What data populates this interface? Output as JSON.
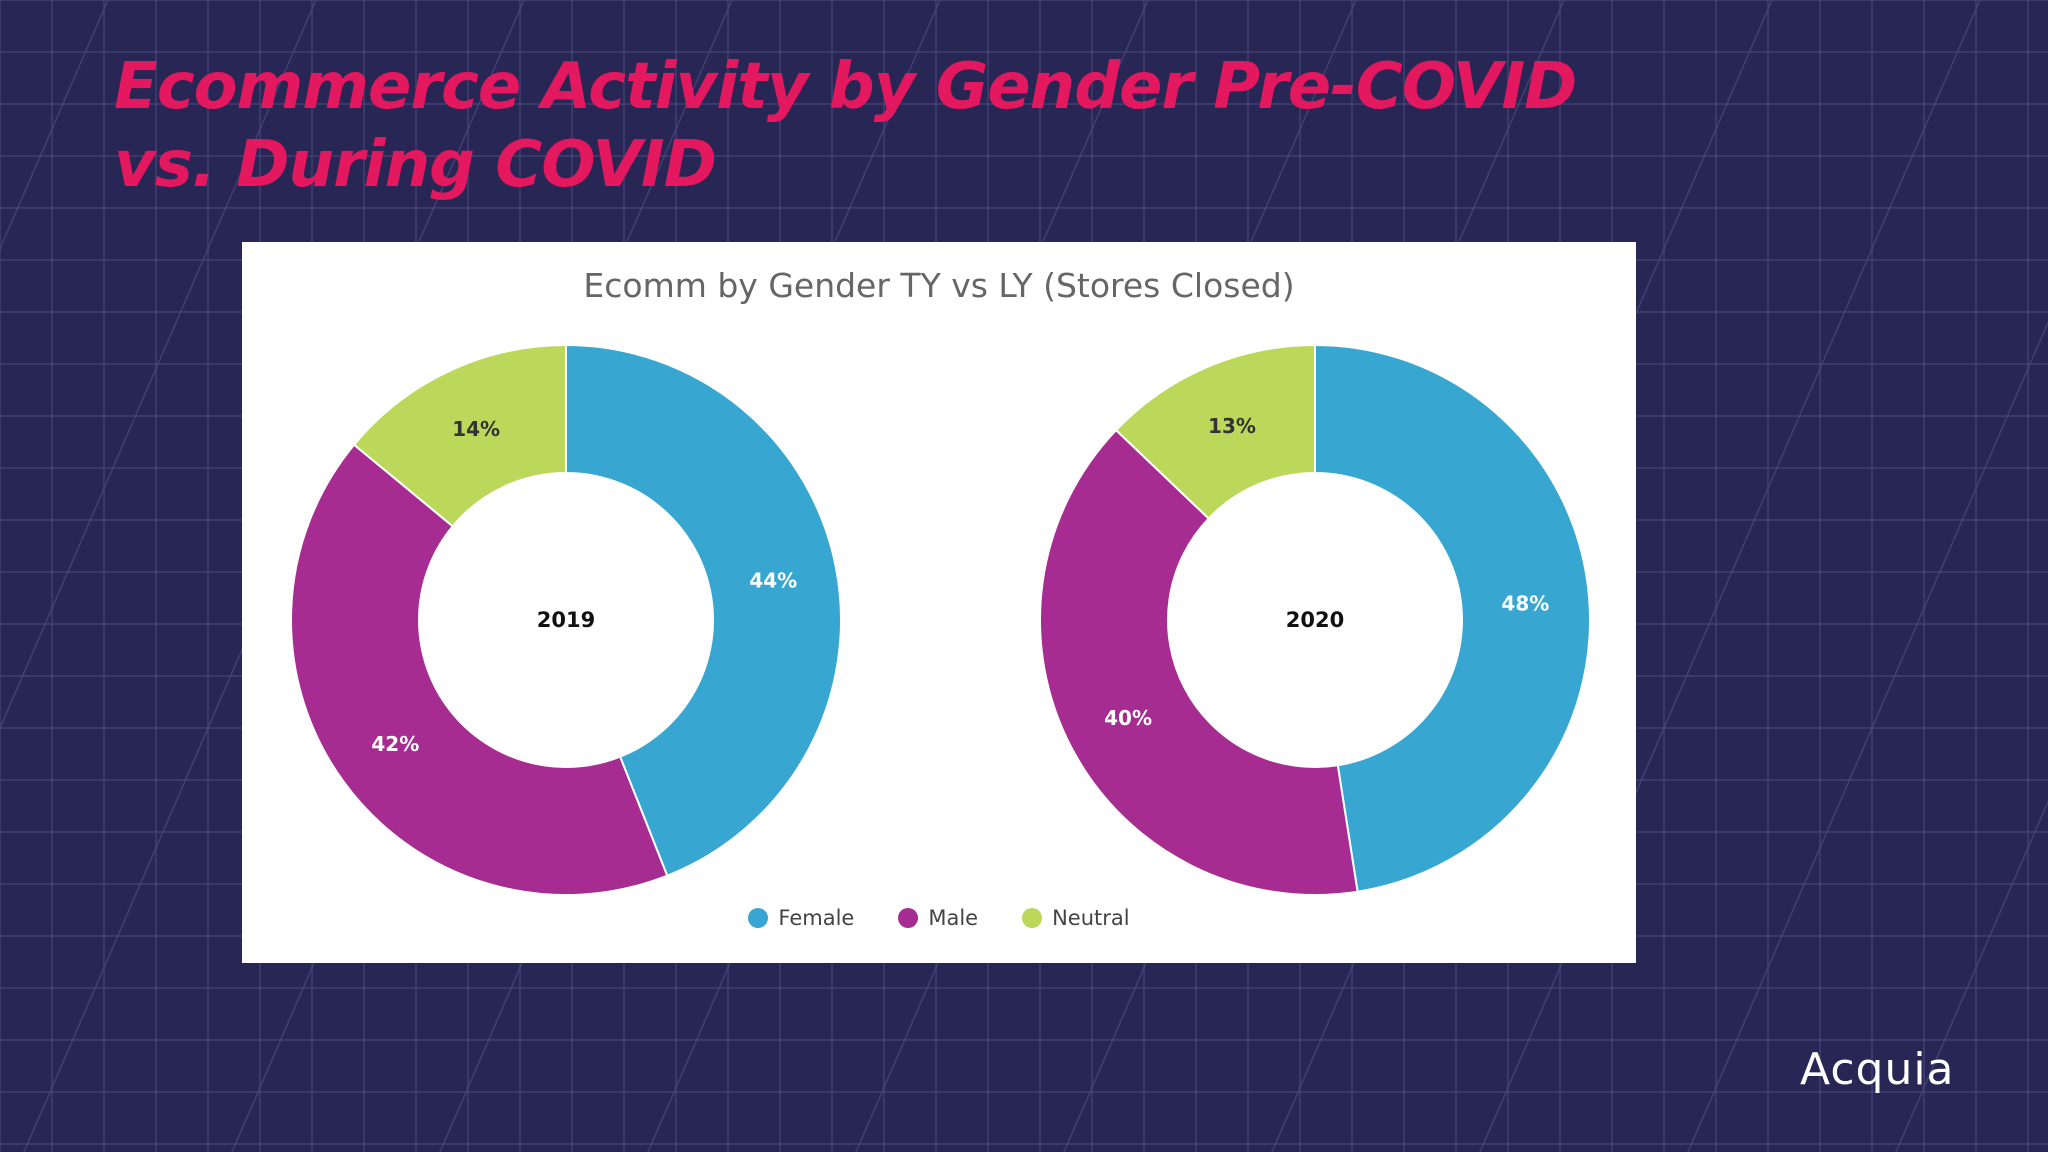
{
  "slide": {
    "title_line1": "Ecommerce Activity by Gender Pre-COVID",
    "title_line2": "vs. During COVID",
    "logo_text": "Acquia"
  },
  "colors": {
    "background": "#272654",
    "grid": "#4a4a7c",
    "title": "#e3185f",
    "female": "#37a7d2",
    "male": "#a62c91",
    "neutral": "#bcd85a"
  },
  "chart_data": {
    "type": "pie",
    "variant": "donut",
    "title": "Ecomm by Gender TY vs LY (Stores Closed)",
    "categories": [
      "Female",
      "Male",
      "Neutral"
    ],
    "legend_position": "bottom",
    "charts": [
      {
        "center_label": "2019",
        "values": [
          44,
          42,
          14
        ],
        "labels": [
          "44%",
          "42%",
          "14%"
        ]
      },
      {
        "center_label": "2020",
        "values": [
          48,
          40,
          13
        ],
        "labels": [
          "48%",
          "40%",
          "13%"
        ]
      }
    ]
  }
}
